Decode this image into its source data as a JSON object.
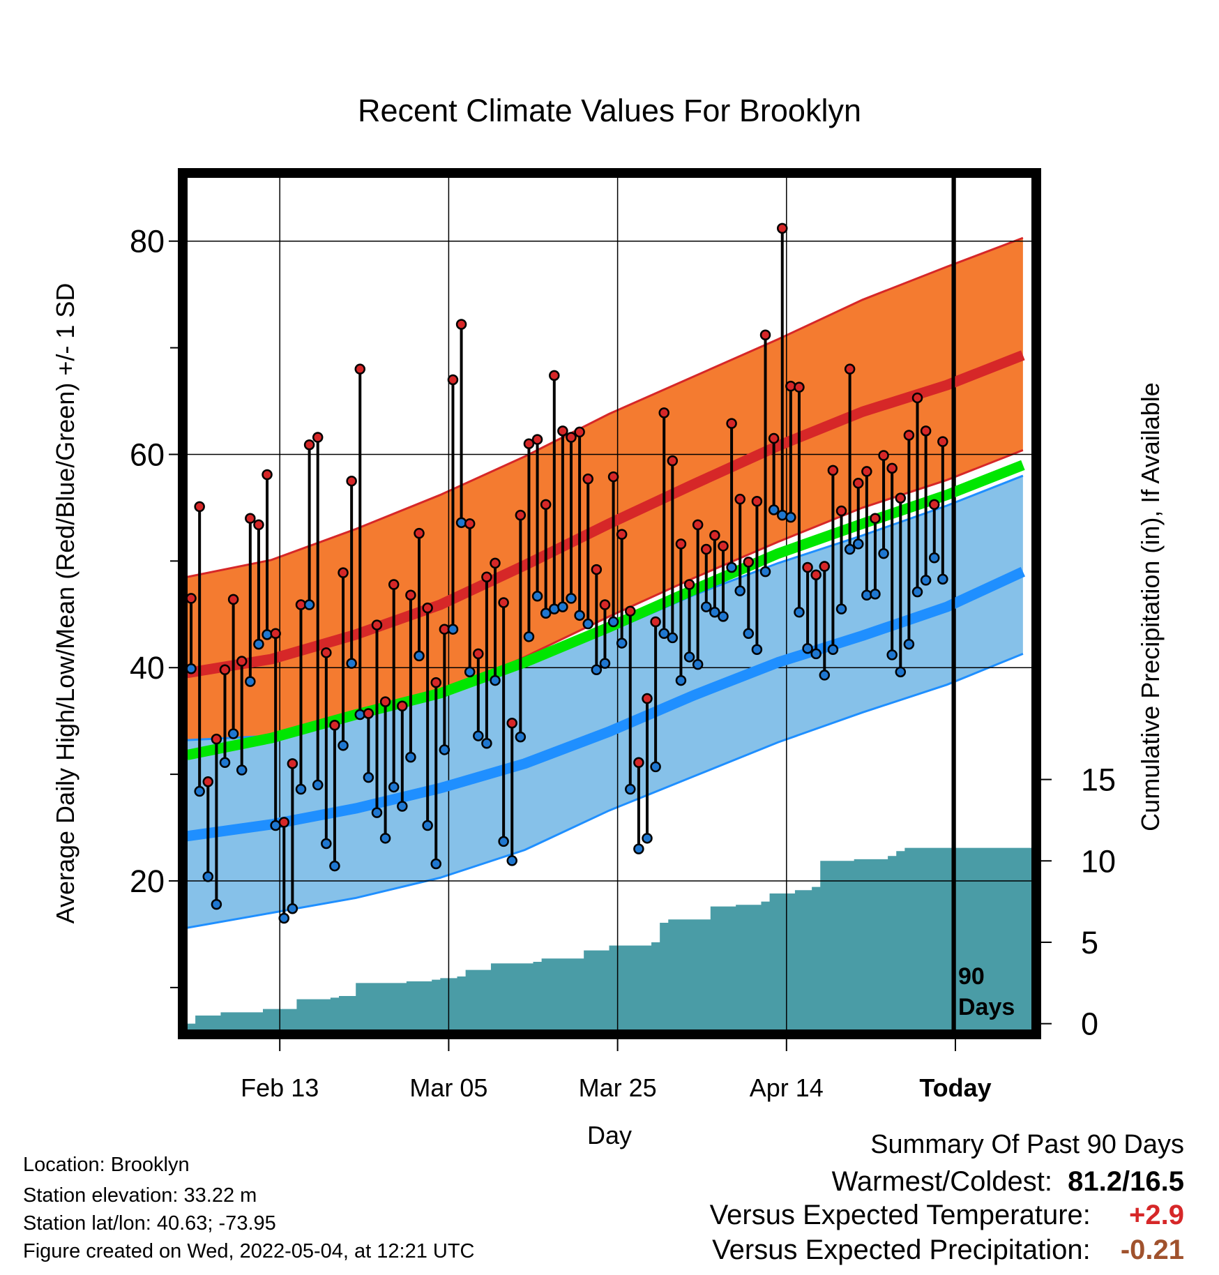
{
  "chart_data": {
    "type": "line",
    "title": "Recent Climate Values For Brooklyn",
    "xlabel": "Day",
    "ylabel": "Average Daily High/Low/Mean (Red/Blue/Green) +/- 1 SD",
    "y2label": "Cumulative Precipitation (in), If Available",
    "x_tick_labels": [
      "Feb 13",
      "Mar 05",
      "Mar 25",
      "Apr 14",
      "Today"
    ],
    "x_tick_days": [
      11,
      31,
      51,
      71,
      91
    ],
    "xlim": [
      0,
      100
    ],
    "ylim": [
      6,
      86
    ],
    "y_ticks": [
      20,
      40,
      60,
      80
    ],
    "y_minor_ticks": [
      10,
      30,
      50,
      70
    ],
    "y2lim": [
      -0.4,
      52
    ],
    "y2_ticks": [
      0,
      5,
      10,
      15
    ],
    "today_marker_label_1": "90",
    "today_marker_label_2": "Days",
    "grid": true,
    "series": [
      {
        "name": "High",
        "color": "#d62728",
        "x": [
          0,
          1,
          2,
          3,
          4,
          5,
          6,
          7,
          8,
          9,
          10,
          11,
          12,
          13,
          14,
          15,
          16,
          17,
          18,
          19,
          20,
          21,
          22,
          23,
          24,
          25,
          26,
          27,
          28,
          29,
          30,
          31,
          32,
          33,
          34,
          35,
          36,
          37,
          38,
          39,
          40,
          41,
          42,
          43,
          44,
          45,
          46,
          47,
          48,
          49,
          50,
          51,
          52,
          53,
          54,
          55,
          56,
          57,
          58,
          59,
          60,
          61,
          62,
          63,
          64,
          65,
          66,
          67,
          68,
          69,
          70,
          71,
          72,
          73,
          74,
          75,
          76,
          77,
          78,
          79,
          80,
          81,
          82,
          83,
          84,
          85,
          86,
          87,
          88,
          89
        ],
        "values": [
          46.5,
          55.1,
          29.3,
          33.3,
          39.8,
          46.4,
          40.6,
          54.0,
          53.4,
          58.1,
          43.2,
          25.5,
          31.0,
          45.9,
          60.9,
          61.6,
          41.4,
          34.6,
          48.9,
          57.5,
          68.0,
          35.7,
          44.0,
          36.8,
          47.8,
          36.4,
          46.8,
          52.6,
          45.6,
          38.6,
          43.6,
          67.0,
          72.2,
          53.5,
          41.3,
          48.5,
          49.8,
          46.1,
          34.8,
          54.3,
          61.0,
          61.4,
          55.3,
          67.4,
          62.2,
          61.6,
          62.1,
          57.7,
          49.2,
          45.9,
          57.9,
          52.5,
          45.3,
          31.1,
          37.1,
          44.3,
          63.9,
          59.4,
          51.6,
          47.8,
          53.4,
          51.1,
          52.4,
          51.4,
          62.9,
          55.8,
          49.9,
          55.6,
          71.2,
          61.5,
          81.2,
          66.4,
          66.3,
          49.4,
          48.7,
          49.5,
          58.5,
          54.7,
          68.0,
          57.3,
          58.4,
          54.0,
          59.9,
          58.7,
          55.9,
          61.8,
          65.3,
          62.2,
          55.3,
          61.2
        ]
      },
      {
        "name": "Low",
        "color": "#1f77d0",
        "x": [
          0,
          1,
          2,
          3,
          4,
          5,
          6,
          7,
          8,
          9,
          10,
          11,
          12,
          13,
          14,
          15,
          16,
          17,
          18,
          19,
          20,
          21,
          22,
          23,
          24,
          25,
          26,
          27,
          28,
          29,
          30,
          31,
          32,
          33,
          34,
          35,
          36,
          37,
          38,
          39,
          40,
          41,
          42,
          43,
          44,
          45,
          46,
          47,
          48,
          49,
          50,
          51,
          52,
          53,
          54,
          55,
          56,
          57,
          58,
          59,
          60,
          61,
          62,
          63,
          64,
          65,
          66,
          67,
          68,
          69,
          70,
          71,
          72,
          73,
          74,
          75,
          76,
          77,
          78,
          79,
          80,
          81,
          82,
          83,
          84,
          85,
          86,
          87,
          88,
          89
        ],
        "values": [
          39.9,
          28.4,
          20.4,
          17.8,
          31.1,
          33.8,
          30.4,
          38.7,
          42.2,
          43.1,
          25.2,
          16.5,
          17.4,
          28.6,
          45.9,
          29.0,
          23.5,
          21.4,
          32.7,
          40.4,
          35.6,
          29.7,
          26.4,
          24.0,
          28.8,
          27.0,
          31.6,
          41.1,
          25.2,
          21.6,
          32.3,
          43.6,
          53.6,
          39.6,
          33.6,
          32.9,
          38.8,
          23.7,
          21.9,
          33.5,
          42.9,
          46.7,
          45.1,
          45.5,
          45.7,
          46.5,
          44.9,
          44.1,
          39.8,
          40.4,
          44.3,
          42.3,
          28.6,
          23.0,
          24.0,
          30.7,
          43.2,
          42.8,
          38.8,
          41.0,
          40.3,
          45.7,
          45.2,
          44.8,
          49.4,
          47.2,
          43.2,
          41.7,
          49.0,
          54.8,
          54.3,
          54.1,
          45.2,
          41.8,
          41.3,
          39.3,
          41.7,
          45.5,
          51.1,
          51.6,
          46.8,
          46.9,
          50.7,
          41.2,
          39.6,
          42.2,
          47.1,
          48.2,
          50.3,
          48.3
        ]
      },
      {
        "name": "Normal High",
        "color": "#d62728",
        "x": [
          0,
          10,
          20,
          30,
          40,
          50,
          60,
          70,
          80,
          90,
          99
        ],
        "values": [
          39.5,
          40.8,
          43.1,
          45.9,
          49.6,
          53.5,
          57.2,
          60.8,
          64.0,
          66.5,
          69.3
        ]
      },
      {
        "name": "Normal Low",
        "color": "#1f8fff",
        "x": [
          0,
          10,
          20,
          30,
          40,
          50,
          60,
          70,
          80,
          90,
          99
        ],
        "values": [
          24.2,
          25.3,
          26.8,
          28.7,
          31.0,
          34.0,
          37.4,
          40.5,
          43.0,
          45.7,
          49.0
        ]
      },
      {
        "name": "Normal Mean",
        "color": "#00e600",
        "x": [
          0,
          10,
          20,
          30,
          40,
          50,
          60,
          70,
          80,
          90,
          99
        ],
        "values": [
          31.8,
          33.4,
          35.6,
          37.6,
          40.5,
          43.8,
          47.3,
          50.7,
          53.5,
          56.2,
          59.0
        ]
      },
      {
        "name": "Cumulative Precipitation",
        "color": "#4a9ca6",
        "x": [
          0,
          1,
          2,
          3,
          4,
          5,
          6,
          7,
          8,
          9,
          10,
          11,
          12,
          13,
          14,
          15,
          16,
          17,
          18,
          19,
          20,
          21,
          22,
          23,
          24,
          25,
          26,
          27,
          28,
          29,
          30,
          31,
          32,
          33,
          34,
          35,
          36,
          37,
          38,
          39,
          40,
          41,
          42,
          43,
          44,
          45,
          46,
          47,
          48,
          49,
          50,
          51,
          52,
          53,
          54,
          55,
          56,
          57,
          58,
          59,
          60,
          61,
          62,
          63,
          64,
          65,
          66,
          67,
          68,
          69,
          70,
          71,
          72,
          73,
          74,
          75,
          76,
          77,
          78,
          79,
          80,
          81,
          82,
          83,
          84,
          85,
          86,
          87,
          88,
          89
        ],
        "values": [
          0.0,
          0.5,
          0.5,
          0.5,
          0.7,
          0.7,
          0.7,
          0.7,
          0.7,
          0.9,
          0.9,
          0.9,
          0.9,
          1.5,
          1.5,
          1.5,
          1.5,
          1.6,
          1.7,
          1.7,
          2.5,
          2.5,
          2.5,
          2.5,
          2.5,
          2.5,
          2.6,
          2.6,
          2.6,
          2.7,
          2.8,
          2.8,
          2.9,
          3.3,
          3.3,
          3.3,
          3.7,
          3.7,
          3.7,
          3.7,
          3.7,
          3.8,
          4.0,
          4.0,
          4.0,
          4.0,
          4.0,
          4.5,
          4.5,
          4.5,
          4.8,
          4.8,
          4.8,
          4.8,
          4.8,
          5.0,
          6.2,
          6.4,
          6.4,
          6.4,
          6.4,
          6.4,
          7.2,
          7.2,
          7.2,
          7.3,
          7.3,
          7.3,
          7.5,
          8.0,
          8.0,
          8.0,
          8.2,
          8.2,
          8.4,
          10.0,
          10.0,
          10.0,
          10.0,
          10.1,
          10.1,
          10.1,
          10.1,
          10.3,
          10.6,
          10.8,
          10.8,
          10.8,
          10.8,
          10.8
        ]
      }
    ],
    "bands": [
      {
        "name": "High +/- 1 SD",
        "color": "#f47b30",
        "upper": [
          48.5,
          50.1,
          53.0,
          56.2,
          59.8,
          63.8,
          67.3,
          70.8,
          74.5,
          77.6,
          80.3
        ],
        "lower": [
          30.6,
          32.0,
          34.6,
          37.5,
          41.0,
          44.8,
          48.4,
          51.8,
          55.0,
          57.6,
          60.4
        ]
      },
      {
        "name": "Low +/- 1 SD",
        "color": "#86c1e9",
        "upper": [
          33.2,
          33.6,
          35.3,
          37.5,
          40.3,
          43.4,
          46.8,
          49.8,
          52.4,
          55.2,
          58.0
        ],
        "lower": [
          15.6,
          17.0,
          18.4,
          20.3,
          22.9,
          26.6,
          29.8,
          33.0,
          35.8,
          38.4,
          41.3
        ]
      }
    ],
    "band_x": [
      0,
      10,
      20,
      30,
      40,
      50,
      60,
      70,
      80,
      90,
      99
    ]
  },
  "footer_info": {
    "location": "Location: Brooklyn",
    "elevation": "Station elevation: 33.22 m",
    "latlon": "Station lat/lon: 40.63; -73.95",
    "created": "Figure created on Wed, 2022-05-04, at 12:21 UTC"
  },
  "summary": {
    "title": "Summary Of Past 90 Days",
    "warm_cold_label": "Warmest/Coldest:",
    "warm_cold_value": "81.2/16.5",
    "temp_label": "Versus Expected Temperature:",
    "temp_value": "+2.9",
    "temp_color": "#d62728",
    "precip_label": "Versus Expected Precipitation:",
    "precip_value": "-0.21",
    "precip_color": "#a0522d"
  }
}
